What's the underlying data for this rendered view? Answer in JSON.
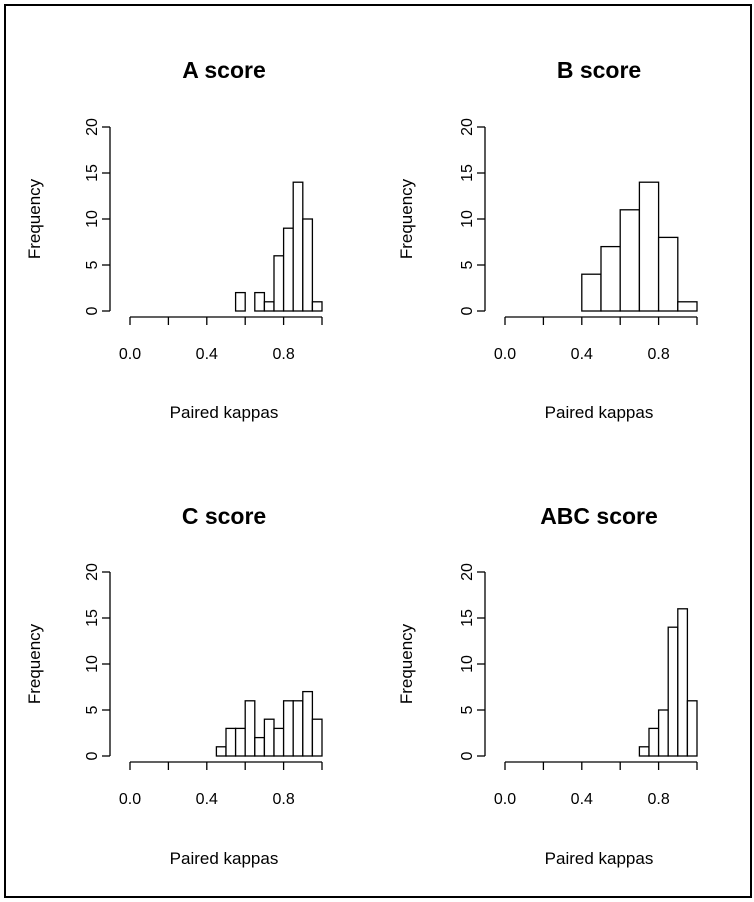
{
  "chart_data": [
    {
      "type": "bar",
      "title": "A score",
      "xlabel": "Paired kappas",
      "ylabel": "Frequency",
      "xlim": [
        0,
        1
      ],
      "ylim": [
        0,
        20
      ],
      "xticks": [
        "0.0",
        "0.4",
        "0.8"
      ],
      "yticks": [
        "0",
        "5",
        "10",
        "15",
        "20"
      ],
      "bins": [
        [
          0.55,
          0.6
        ],
        [
          0.6,
          0.65
        ],
        [
          0.65,
          0.7
        ],
        [
          0.7,
          0.75
        ],
        [
          0.75,
          0.8
        ],
        [
          0.8,
          0.85
        ],
        [
          0.85,
          0.9
        ],
        [
          0.9,
          0.95
        ],
        [
          0.95,
          1.0
        ]
      ],
      "values": [
        2,
        0,
        2,
        1,
        6,
        9,
        14,
        10,
        1
      ]
    },
    {
      "type": "bar",
      "title": "B score",
      "xlabel": "Paired kappas",
      "ylabel": "Frequency",
      "xlim": [
        0,
        1
      ],
      "ylim": [
        0,
        20
      ],
      "xticks": [
        "0.0",
        "0.4",
        "0.8"
      ],
      "yticks": [
        "0",
        "5",
        "10",
        "15",
        "20"
      ],
      "bins": [
        [
          0.4,
          0.5
        ],
        [
          0.5,
          0.6
        ],
        [
          0.6,
          0.7
        ],
        [
          0.7,
          0.8
        ],
        [
          0.8,
          0.9
        ],
        [
          0.9,
          1.0
        ]
      ],
      "values": [
        4,
        7,
        11,
        14,
        8,
        1
      ]
    },
    {
      "type": "bar",
      "title": "C score",
      "xlabel": "Paired kappas",
      "ylabel": "Frequency",
      "xlim": [
        0,
        1
      ],
      "ylim": [
        0,
        20
      ],
      "xticks": [
        "0.0",
        "0.4",
        "0.8"
      ],
      "yticks": [
        "0",
        "5",
        "10",
        "15",
        "20"
      ],
      "bins": [
        [
          0.45,
          0.5
        ],
        [
          0.5,
          0.55
        ],
        [
          0.55,
          0.6
        ],
        [
          0.6,
          0.65
        ],
        [
          0.65,
          0.7
        ],
        [
          0.7,
          0.75
        ],
        [
          0.75,
          0.8
        ],
        [
          0.8,
          0.85
        ],
        [
          0.85,
          0.9
        ],
        [
          0.9,
          0.95
        ],
        [
          0.95,
          1.0
        ]
      ],
      "values": [
        1,
        3,
        3,
        6,
        2,
        4,
        3,
        6,
        6,
        7,
        4
      ]
    },
    {
      "type": "bar",
      "title": "ABC score",
      "xlabel": "Paired kappas",
      "ylabel": "Frequency",
      "xlim": [
        0,
        1
      ],
      "ylim": [
        0,
        20
      ],
      "xticks": [
        "0.0",
        "0.4",
        "0.8"
      ],
      "yticks": [
        "0",
        "5",
        "10",
        "15",
        "20"
      ],
      "bins": [
        [
          0.7,
          0.75
        ],
        [
          0.75,
          0.8
        ],
        [
          0.8,
          0.85
        ],
        [
          0.85,
          0.9
        ],
        [
          0.9,
          0.95
        ],
        [
          0.95,
          1.0
        ]
      ],
      "values": [
        1,
        3,
        5,
        14,
        16,
        6
      ]
    }
  ]
}
